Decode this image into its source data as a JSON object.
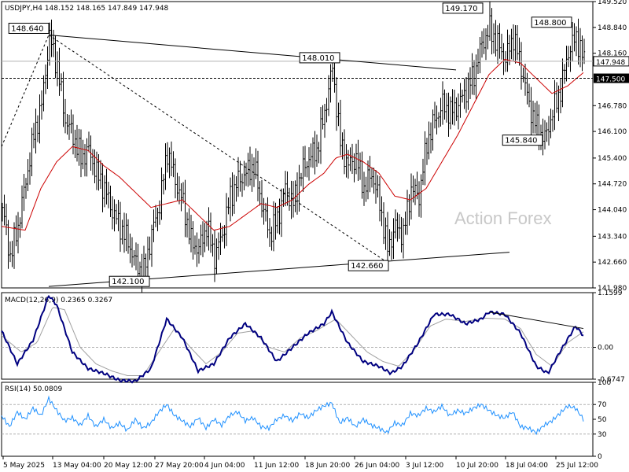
{
  "chart_data": {
    "type": "line",
    "symbol_title": "USDJPY,H4  148.152 148.165 147.849 147.948",
    "watermark": "Action Forex",
    "price_pane": {
      "ylim": [
        141.98,
        149.52
      ],
      "y_ticks": [
        "149.520",
        "148.840",
        "148.160",
        "147.500",
        "146.780",
        "146.100",
        "145.400",
        "144.720",
        "144.040",
        "143.340",
        "142.660",
        "141.980"
      ],
      "current_price": "147.948",
      "reference_level": "147.500",
      "callouts": [
        {
          "label": "148.640",
          "x": 60,
          "y": 148.64
        },
        {
          "label": "148.010",
          "x": 418,
          "y": 148.01
        },
        {
          "label": "149.170",
          "x": 612,
          "y": 149.17
        },
        {
          "label": "148.800",
          "x": 725,
          "y": 148.8
        },
        {
          "label": "145.840",
          "x": 690,
          "y": 145.84
        },
        {
          "label": "142.660",
          "x": 490,
          "y": 142.66
        },
        {
          "label": "142.100",
          "x": 178,
          "y": 142.1
        }
      ],
      "trendlines": [
        {
          "from": [
            60,
            148.64
          ],
          "to": [
            578,
            147.72
          ],
          "style": "solid"
        },
        {
          "from": [
            60,
            142.02
          ],
          "to": [
            646,
            142.92
          ],
          "style": "solid"
        },
        {
          "from": [
            60,
            148.64
          ],
          "to": [
            490,
            142.66
          ],
          "style": "dashed"
        },
        {
          "from": [
            0,
            145.7
          ],
          "to": [
            60,
            148.64
          ],
          "style": "dashed"
        }
      ],
      "close_anchors": [
        [
          0,
          144.1
        ],
        [
          10,
          142.8
        ],
        [
          20,
          143.6
        ],
        [
          30,
          144.8
        ],
        [
          40,
          146.0
        ],
        [
          50,
          146.8
        ],
        [
          60,
          148.6
        ],
        [
          70,
          147.8
        ],
        [
          80,
          146.4
        ],
        [
          90,
          146.0
        ],
        [
          100,
          145.4
        ],
        [
          110,
          145.6
        ],
        [
          120,
          145.0
        ],
        [
          130,
          144.6
        ],
        [
          140,
          144.0
        ],
        [
          150,
          143.6
        ],
        [
          160,
          143.2
        ],
        [
          170,
          142.6
        ],
        [
          180,
          142.4
        ],
        [
          190,
          143.4
        ],
        [
          200,
          144.2
        ],
        [
          210,
          145.6
        ],
        [
          220,
          144.8
        ],
        [
          230,
          144.2
        ],
        [
          240,
          143.2
        ],
        [
          250,
          143.0
        ],
        [
          260,
          143.6
        ],
        [
          270,
          142.8
        ],
        [
          280,
          143.4
        ],
        [
          290,
          144.4
        ],
        [
          300,
          144.8
        ],
        [
          310,
          145.0
        ],
        [
          320,
          145.2
        ],
        [
          330,
          144.2
        ],
        [
          340,
          143.4
        ],
        [
          350,
          143.8
        ],
        [
          360,
          144.6
        ],
        [
          370,
          144.2
        ],
        [
          380,
          145.0
        ],
        [
          390,
          145.4
        ],
        [
          400,
          145.6
        ],
        [
          410,
          146.6
        ],
        [
          420,
          147.8
        ],
        [
          430,
          145.8
        ],
        [
          440,
          145.2
        ],
        [
          450,
          145.4
        ],
        [
          460,
          144.6
        ],
        [
          470,
          145.0
        ],
        [
          480,
          144.2
        ],
        [
          490,
          143.0
        ],
        [
          500,
          143.6
        ],
        [
          510,
          143.4
        ],
        [
          520,
          144.6
        ],
        [
          530,
          144.4
        ],
        [
          540,
          145.8
        ],
        [
          550,
          146.4
        ],
        [
          560,
          146.8
        ],
        [
          570,
          146.6
        ],
        [
          580,
          146.8
        ],
        [
          590,
          147.2
        ],
        [
          600,
          147.6
        ],
        [
          610,
          148.4
        ],
        [
          620,
          148.8
        ],
        [
          630,
          148.4
        ],
        [
          640,
          148.0
        ],
        [
          650,
          148.6
        ],
        [
          660,
          147.8
        ],
        [
          670,
          146.8
        ],
        [
          680,
          146.2
        ],
        [
          690,
          145.9
        ],
        [
          700,
          146.6
        ],
        [
          710,
          147.2
        ],
        [
          720,
          148.2
        ],
        [
          730,
          148.6
        ],
        [
          740,
          147.95
        ]
      ],
      "ma_anchors": [
        [
          0,
          143.6
        ],
        [
          30,
          143.5
        ],
        [
          50,
          144.6
        ],
        [
          70,
          145.3
        ],
        [
          90,
          145.7
        ],
        [
          110,
          145.6
        ],
        [
          130,
          145.2
        ],
        [
          150,
          144.9
        ],
        [
          170,
          144.5
        ],
        [
          190,
          144.1
        ],
        [
          210,
          144.2
        ],
        [
          230,
          144.3
        ],
        [
          250,
          143.9
        ],
        [
          270,
          143.5
        ],
        [
          290,
          143.6
        ],
        [
          310,
          143.9
        ],
        [
          330,
          144.2
        ],
        [
          350,
          144.1
        ],
        [
          370,
          144.3
        ],
        [
          390,
          144.7
        ],
        [
          410,
          145.0
        ],
        [
          425,
          145.4
        ],
        [
          440,
          145.5
        ],
        [
          460,
          145.3
        ],
        [
          480,
          145.0
        ],
        [
          500,
          144.4
        ],
        [
          520,
          144.3
        ],
        [
          540,
          144.6
        ],
        [
          560,
          145.3
        ],
        [
          580,
          146.0
        ],
        [
          600,
          146.8
        ],
        [
          620,
          147.6
        ],
        [
          640,
          148.0
        ],
        [
          660,
          147.9
        ],
        [
          680,
          147.5
        ],
        [
          700,
          147.1
        ],
        [
          720,
          147.3
        ],
        [
          740,
          147.65
        ]
      ]
    },
    "macd_pane": {
      "title": "MACD(12,26,9) 0.2365 0.3267",
      "ylim": [
        -0.6747,
        1.1599
      ],
      "y_ticks": [
        "1.1599",
        "0.00",
        "-0.6747"
      ],
      "zero_line": 0,
      "macd_anchors": [
        [
          0,
          0.35
        ],
        [
          20,
          -0.35
        ],
        [
          40,
          0.15
        ],
        [
          60,
          1.1
        ],
        [
          70,
          0.9
        ],
        [
          90,
          -0.1
        ],
        [
          110,
          -0.45
        ],
        [
          130,
          -0.55
        ],
        [
          150,
          -0.7
        ],
        [
          170,
          -0.72
        ],
        [
          190,
          -0.45
        ],
        [
          210,
          0.6
        ],
        [
          230,
          0.2
        ],
        [
          250,
          -0.5
        ],
        [
          270,
          -0.35
        ],
        [
          290,
          0.2
        ],
        [
          310,
          0.5
        ],
        [
          330,
          0.2
        ],
        [
          350,
          -0.3
        ],
        [
          370,
          0.0
        ],
        [
          390,
          0.3
        ],
        [
          410,
          0.5
        ],
        [
          420,
          0.75
        ],
        [
          440,
          0.1
        ],
        [
          460,
          -0.3
        ],
        [
          480,
          -0.4
        ],
        [
          495,
          -0.55
        ],
        [
          510,
          -0.4
        ],
        [
          530,
          0.1
        ],
        [
          550,
          0.7
        ],
        [
          570,
          0.7
        ],
        [
          590,
          0.5
        ],
        [
          610,
          0.6
        ],
        [
          620,
          0.75
        ],
        [
          640,
          0.7
        ],
        [
          660,
          0.3
        ],
        [
          680,
          -0.4
        ],
        [
          695,
          -0.55
        ],
        [
          710,
          -0.1
        ],
        [
          730,
          0.45
        ],
        [
          740,
          0.25
        ]
      ],
      "signal_anchors": [
        [
          0,
          0.25
        ],
        [
          25,
          -0.1
        ],
        [
          45,
          0.1
        ],
        [
          65,
          0.85
        ],
        [
          80,
          0.8
        ],
        [
          100,
          0.0
        ],
        [
          120,
          -0.35
        ],
        [
          140,
          -0.5
        ],
        [
          160,
          -0.6
        ],
        [
          180,
          -0.6
        ],
        [
          200,
          -0.1
        ],
        [
          220,
          0.4
        ],
        [
          240,
          0.0
        ],
        [
          260,
          -0.35
        ],
        [
          280,
          -0.1
        ],
        [
          300,
          0.3
        ],
        [
          320,
          0.35
        ],
        [
          340,
          0.0
        ],
        [
          360,
          -0.1
        ],
        [
          380,
          0.2
        ],
        [
          400,
          0.35
        ],
        [
          425,
          0.6
        ],
        [
          445,
          0.25
        ],
        [
          465,
          -0.1
        ],
        [
          485,
          -0.3
        ],
        [
          505,
          -0.4
        ],
        [
          525,
          -0.05
        ],
        [
          545,
          0.45
        ],
        [
          565,
          0.6
        ],
        [
          590,
          0.55
        ],
        [
          615,
          0.62
        ],
        [
          640,
          0.6
        ],
        [
          660,
          0.4
        ],
        [
          680,
          -0.15
        ],
        [
          700,
          -0.4
        ],
        [
          720,
          0.1
        ],
        [
          740,
          0.33
        ]
      ],
      "divergence_line": {
        "from": [
          620,
          0.75
        ],
        "to": [
          740,
          0.4
        ]
      }
    },
    "rsi_pane": {
      "title": "RSI(14) 50.0809",
      "ylim": [
        0,
        100
      ],
      "y_ticks": [
        "100",
        "70",
        "50",
        "30",
        "0"
      ],
      "levels": [
        70,
        30
      ],
      "rsi_anchors": [
        [
          0,
          55
        ],
        [
          10,
          40
        ],
        [
          20,
          60
        ],
        [
          30,
          50
        ],
        [
          40,
          65
        ],
        [
          50,
          55
        ],
        [
          60,
          78
        ],
        [
          70,
          62
        ],
        [
          80,
          48
        ],
        [
          90,
          52
        ],
        [
          100,
          42
        ],
        [
          110,
          55
        ],
        [
          120,
          40
        ],
        [
          130,
          50
        ],
        [
          140,
          38
        ],
        [
          150,
          45
        ],
        [
          160,
          35
        ],
        [
          170,
          50
        ],
        [
          180,
          38
        ],
        [
          190,
          45
        ],
        [
          200,
          60
        ],
        [
          210,
          70
        ],
        [
          220,
          55
        ],
        [
          230,
          48
        ],
        [
          240,
          40
        ],
        [
          250,
          52
        ],
        [
          260,
          38
        ],
        [
          270,
          50
        ],
        [
          280,
          42
        ],
        [
          290,
          55
        ],
        [
          300,
          60
        ],
        [
          310,
          48
        ],
        [
          320,
          52
        ],
        [
          330,
          40
        ],
        [
          340,
          38
        ],
        [
          350,
          50
        ],
        [
          360,
          55
        ],
        [
          370,
          48
        ],
        [
          380,
          58
        ],
        [
          390,
          52
        ],
        [
          400,
          62
        ],
        [
          410,
          68
        ],
        [
          420,
          72
        ],
        [
          430,
          45
        ],
        [
          440,
          52
        ],
        [
          450,
          40
        ],
        [
          460,
          50
        ],
        [
          470,
          42
        ],
        [
          480,
          38
        ],
        [
          490,
          32
        ],
        [
          500,
          45
        ],
        [
          510,
          42
        ],
        [
          520,
          58
        ],
        [
          530,
          55
        ],
        [
          540,
          65
        ],
        [
          550,
          60
        ],
        [
          560,
          68
        ],
        [
          570,
          55
        ],
        [
          580,
          62
        ],
        [
          590,
          58
        ],
        [
          600,
          65
        ],
        [
          610,
          70
        ],
        [
          620,
          62
        ],
        [
          630,
          55
        ],
        [
          640,
          52
        ],
        [
          650,
          60
        ],
        [
          660,
          40
        ],
        [
          670,
          38
        ],
        [
          680,
          32
        ],
        [
          690,
          42
        ],
        [
          700,
          48
        ],
        [
          710,
          58
        ],
        [
          720,
          68
        ],
        [
          730,
          65
        ],
        [
          740,
          50
        ]
      ]
    },
    "x_ticks": [
      {
        "label": "5 May 2025",
        "x": 2
      },
      {
        "label": "13 May 04:00",
        "x": 65
      },
      {
        "label": "20 May 12:00",
        "x": 130
      },
      {
        "label": "27 May 20:00",
        "x": 195
      },
      {
        "label": "4 Jun 04:00",
        "x": 258
      },
      {
        "label": "11 Jun 12:00",
        "x": 321
      },
      {
        "label": "18 Jun 20:00",
        "x": 386
      },
      {
        "label": "26 Jun 04:00",
        "x": 449
      },
      {
        "label": "3 Jul 12:00",
        "x": 514
      },
      {
        "label": "10 Jul 20:00",
        "x": 578
      },
      {
        "label": "18 Jul 04:00",
        "x": 641
      },
      {
        "label": "25 Jul 12:00",
        "x": 705
      }
    ],
    "colors": {
      "candle": "#000000",
      "ma": "#cc0000",
      "macd": "#000080",
      "signal": "#a0a0a0",
      "rsi": "#1e90ff",
      "grid": "#b0b0b0"
    }
  }
}
